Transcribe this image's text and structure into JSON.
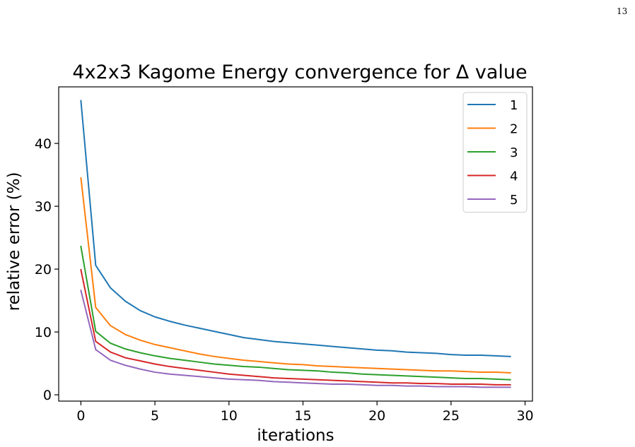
{
  "page_number": "13",
  "chart_data": {
    "type": "line",
    "title": "4x2x3 Kagome Energy convergence for Δ value",
    "xlabel": "iterations",
    "ylabel": "relative error (%)",
    "xlim": [
      -1.5,
      30.5
    ],
    "ylim": [
      -1,
      49
    ],
    "xticks": [
      0,
      5,
      10,
      15,
      20,
      25,
      30
    ],
    "yticks": [
      0,
      10,
      20,
      30,
      40
    ],
    "grid": false,
    "legend_position": "top-right",
    "x": [
      0,
      1,
      2,
      3,
      4,
      5,
      6,
      7,
      8,
      9,
      10,
      11,
      12,
      13,
      14,
      15,
      16,
      17,
      18,
      19,
      20,
      21,
      22,
      23,
      24,
      25,
      26,
      27,
      28,
      29
    ],
    "series": [
      {
        "name": "1",
        "color": "#1f77b4",
        "values": [
          46.8,
          20.6,
          17.0,
          14.9,
          13.4,
          12.4,
          11.7,
          11.1,
          10.6,
          10.1,
          9.6,
          9.1,
          8.8,
          8.5,
          8.3,
          8.1,
          7.9,
          7.7,
          7.5,
          7.3,
          7.1,
          7.0,
          6.8,
          6.7,
          6.6,
          6.4,
          6.3,
          6.3,
          6.2,
          6.1
        ]
      },
      {
        "name": "2",
        "color": "#ff7f0e",
        "values": [
          34.5,
          13.9,
          11.0,
          9.6,
          8.7,
          8.0,
          7.5,
          7.0,
          6.5,
          6.1,
          5.8,
          5.5,
          5.3,
          5.1,
          4.9,
          4.8,
          4.6,
          4.5,
          4.4,
          4.3,
          4.2,
          4.1,
          4.0,
          3.9,
          3.8,
          3.8,
          3.7,
          3.6,
          3.6,
          3.5
        ]
      },
      {
        "name": "3",
        "color": "#2ca02c",
        "values": [
          23.6,
          10.1,
          8.2,
          7.3,
          6.7,
          6.2,
          5.8,
          5.5,
          5.2,
          4.9,
          4.7,
          4.5,
          4.4,
          4.2,
          4.0,
          3.9,
          3.8,
          3.6,
          3.5,
          3.3,
          3.2,
          3.1,
          3.0,
          2.9,
          2.8,
          2.7,
          2.6,
          2.6,
          2.5,
          2.4
        ]
      },
      {
        "name": "4",
        "color": "#d62728",
        "values": [
          19.9,
          8.5,
          6.8,
          5.9,
          5.4,
          4.9,
          4.5,
          4.2,
          3.9,
          3.6,
          3.3,
          3.1,
          2.9,
          2.7,
          2.6,
          2.5,
          2.4,
          2.3,
          2.2,
          2.1,
          2.0,
          1.9,
          1.9,
          1.8,
          1.8,
          1.7,
          1.7,
          1.7,
          1.6,
          1.6
        ]
      },
      {
        "name": "5",
        "color": "#9467bd",
        "values": [
          16.6,
          7.2,
          5.5,
          4.7,
          4.1,
          3.6,
          3.3,
          3.1,
          2.9,
          2.7,
          2.5,
          2.4,
          2.3,
          2.1,
          2.0,
          1.9,
          1.8,
          1.7,
          1.7,
          1.6,
          1.5,
          1.5,
          1.4,
          1.4,
          1.3,
          1.3,
          1.3,
          1.2,
          1.2,
          1.2
        ]
      }
    ]
  }
}
